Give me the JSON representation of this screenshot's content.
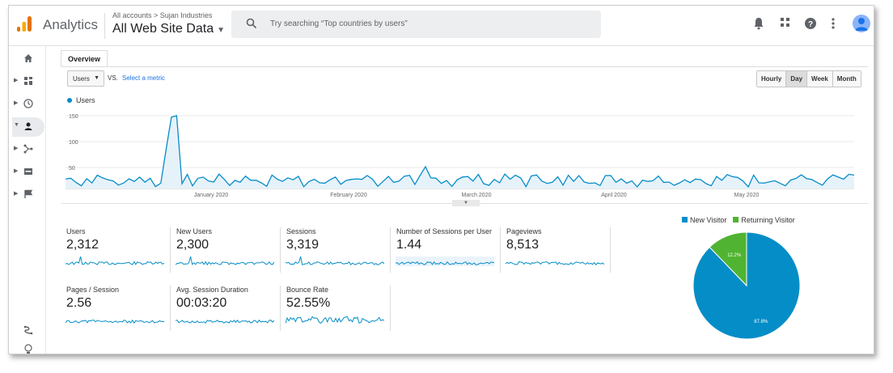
{
  "header": {
    "app_name": "Analytics",
    "breadcrumb": "All accounts > Sujan Industries",
    "property": "All Web Site Data",
    "search_placeholder": "Try searching “Top countries by users”",
    "icons": [
      "bell-icon",
      "apps-icon",
      "help-icon",
      "more-vert-icon"
    ]
  },
  "leftnav": {
    "items": [
      "home",
      "customization",
      "realtime",
      "audience",
      "acquisition",
      "behavior",
      "conversions"
    ],
    "active": "audience",
    "bottom_icons": [
      "attribution-icon",
      "discover-icon"
    ]
  },
  "overview": {
    "tab_label": "Overview",
    "metric_selected": "Users",
    "vs_label": "VS.",
    "select_metric_label": "Select a metric",
    "granularity": [
      "Hourly",
      "Day",
      "Week",
      "Month"
    ],
    "granularity_selected": "Day",
    "series_name": "Users",
    "y_ticks": [
      "150",
      "100",
      "50"
    ],
    "x_ticks": [
      "January 2020",
      "February 2020",
      "March 2020",
      "April 2020",
      "May 2020"
    ]
  },
  "chart_data": {
    "type": "area",
    "series": [
      {
        "name": "Users",
        "color": "#058dc7"
      }
    ],
    "y_range": [
      0,
      150
    ],
    "x_ticks": [
      "January 2020",
      "February 2020",
      "March 2020",
      "April 2020",
      "May 2020"
    ],
    "peak_value": 150,
    "grid": true
  },
  "scorecards": [
    {
      "label": "Users",
      "value": "2,312"
    },
    {
      "label": "New Users",
      "value": "2,300"
    },
    {
      "label": "Sessions",
      "value": "3,319"
    },
    {
      "label": "Number of Sessions per User",
      "value": "1.44"
    },
    {
      "label": "Pageviews",
      "value": "8,513"
    },
    {
      "label": "Pages / Session",
      "value": "2.56"
    },
    {
      "label": "Avg. Session Duration",
      "value": "00:03:20"
    },
    {
      "label": "Bounce Rate",
      "value": "52.55%"
    }
  ],
  "pie": {
    "legend": [
      {
        "label": "New Visitor",
        "color": "#058dc7"
      },
      {
        "label": "Returning Visitor",
        "color": "#50b432"
      }
    ],
    "slices": [
      {
        "label": "New Visitor",
        "value": 87.8,
        "text": "87.8%"
      },
      {
        "label": "Returning Visitor",
        "value": 12.2,
        "text": "12.2%"
      }
    ]
  }
}
